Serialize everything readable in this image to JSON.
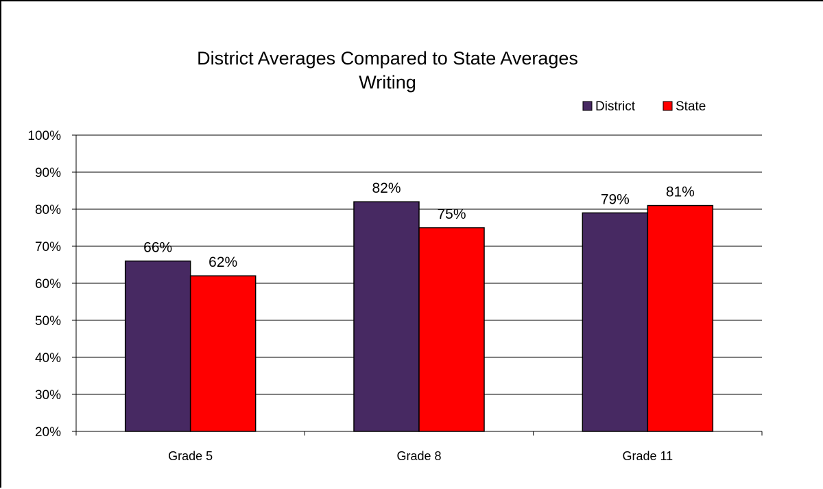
{
  "chart_data": {
    "type": "bar",
    "title": "District Averages Compared to State Averages",
    "subtitle": "Writing",
    "categories": [
      "Grade 5",
      "Grade 8",
      "Grade 11"
    ],
    "series": [
      {
        "name": "District",
        "values": [
          66,
          82,
          79
        ],
        "labels": [
          "66%",
          "82%",
          "79%"
        ],
        "color": "#472962"
      },
      {
        "name": "State",
        "values": [
          62,
          75,
          81
        ],
        "labels": [
          "62%",
          "75%",
          "81%"
        ],
        "color": "#ff0000"
      }
    ],
    "ylim": [
      20,
      100
    ],
    "yticks": [
      20,
      30,
      40,
      50,
      60,
      70,
      80,
      90,
      100
    ],
    "ytick_labels": [
      "20%",
      "30%",
      "40%",
      "50%",
      "60%",
      "70%",
      "80%",
      "90%",
      "100%"
    ],
    "xlabel": "",
    "ylabel": "",
    "grid": true,
    "legend_position": "top-right"
  }
}
